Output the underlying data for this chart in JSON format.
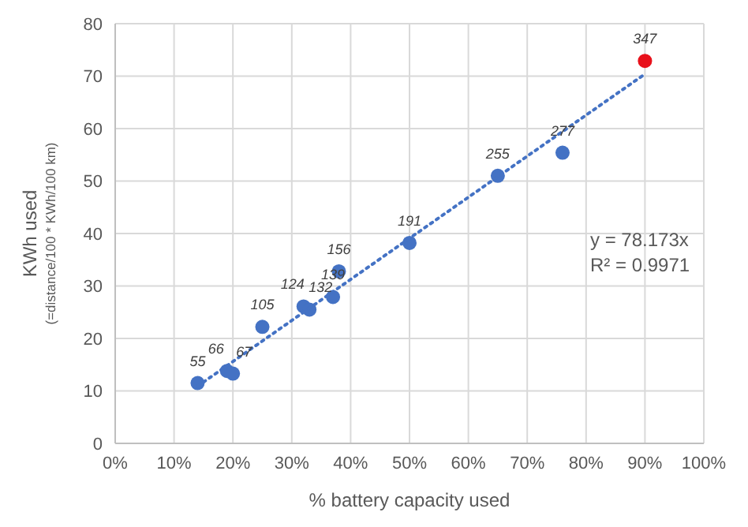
{
  "chart_data": {
    "type": "scatter",
    "xlabel": "% battery capacity used",
    "ylabel": "KWh used\n(=distance/100 * KWh/100 km)",
    "x": [
      0.14,
      0.19,
      0.2,
      0.25,
      0.32,
      0.33,
      0.37,
      0.38,
      0.5,
      0.65,
      0.76,
      0.9
    ],
    "series": [
      {
        "color": "#4472c4",
        "values": [
          11.5,
          13.8,
          13.3,
          22.2,
          26.1,
          25.5,
          27.9,
          32.8,
          38.2,
          51,
          55.4,
          72.9
        ],
        "colors": [
          "#4472c4",
          "#4472c4",
          "#4472c4",
          "#4472c4",
          "#4472c4",
          "#4472c4",
          "#4472c4",
          "#4472c4",
          "#4472c4",
          "#4472c4",
          "#4472c4",
          "#e8111b"
        ],
        "marker": "circle"
      },
      {
        "type": "line",
        "color": "#4472c4",
        "x": [
          0.14,
          0.9
        ],
        "values": [
          10.9,
          70.4
        ],
        "line_style": "dotted",
        "marker": "none"
      }
    ],
    "xlim": [
      0,
      1
    ],
    "xticks": [
      {
        "value": 0,
        "label": "0%"
      },
      {
        "value": 0.1,
        "label": "10%"
      },
      {
        "value": 0.2,
        "label": "20%"
      },
      {
        "value": 0.3,
        "label": "30%"
      },
      {
        "value": 0.4,
        "label": "40%"
      },
      {
        "value": 0.5,
        "label": "50%"
      },
      {
        "value": 0.6,
        "label": "60%"
      },
      {
        "value": 0.7,
        "label": "70%"
      },
      {
        "value": 0.8,
        "label": "80%"
      },
      {
        "value": 0.9,
        "label": "90%"
      },
      {
        "value": 1,
        "label": "100%"
      }
    ],
    "ylim": [
      0,
      80
    ],
    "yticks": [
      0,
      10,
      20,
      30,
      40,
      50,
      60,
      70,
      80
    ],
    "grid": true,
    "legend": false,
    "annotations": [
      {
        "text": "55",
        "x": 0.14,
        "y": 11.5
      },
      {
        "text": "66",
        "x": 0.19,
        "y": 13.8
      },
      {
        "text": "67",
        "x": 0.2,
        "y": 13.3
      },
      {
        "text": "105",
        "x": 0.25,
        "y": 22.2
      },
      {
        "text": "124",
        "x": 0.32,
        "y": 26.1
      },
      {
        "text": "132",
        "x": 0.33,
        "y": 25.5
      },
      {
        "text": "139",
        "x": 0.37,
        "y": 27.9
      },
      {
        "text": "156",
        "x": 0.38,
        "y": 32.8
      },
      {
        "text": "191",
        "x": 0.5,
        "y": 38.2
      },
      {
        "text": "255",
        "x": 0.65,
        "y": 51
      },
      {
        "text": "277",
        "x": 0.76,
        "y": 55.4
      },
      {
        "text": "347",
        "x": 0.9,
        "y": 72.9
      },
      "y = 78.173x",
      "R² = 0.9971"
    ]
  }
}
